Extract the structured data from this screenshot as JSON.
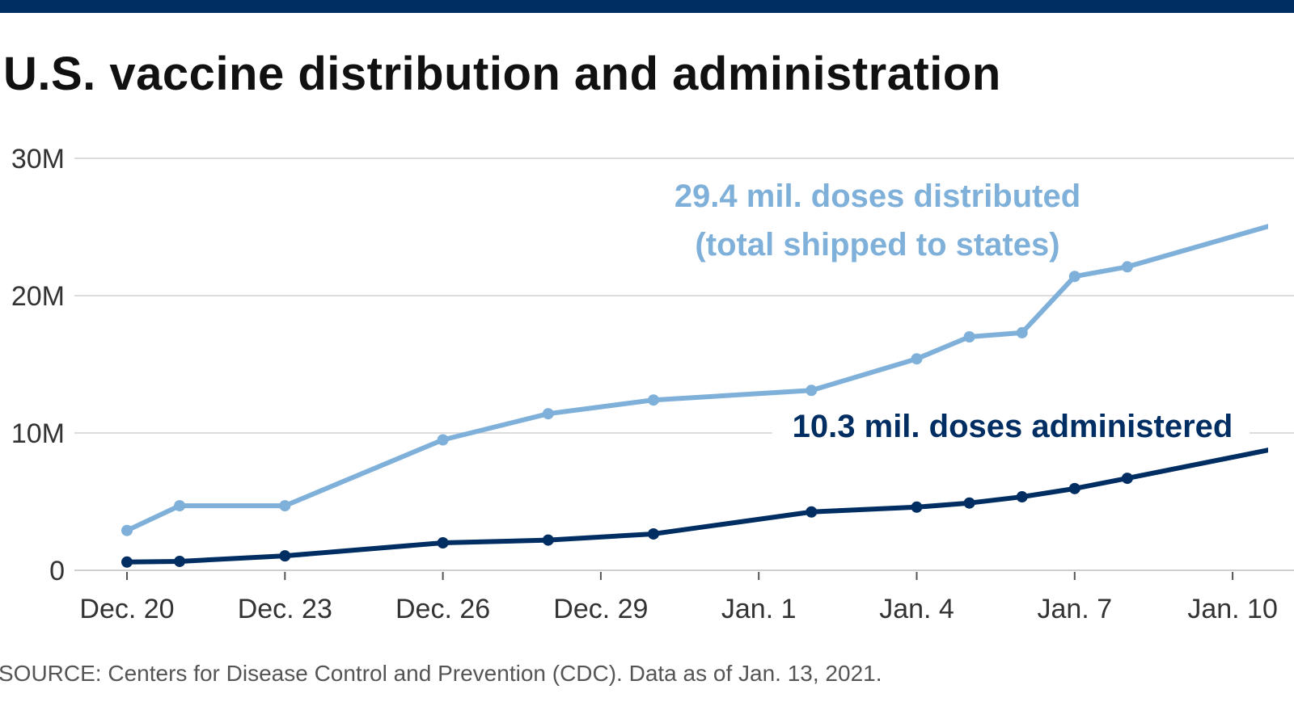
{
  "title": "U.S. vaccine distribution and administration",
  "source": "SOURCE: Centers for Disease Control and Prevention (CDC). Data as of Jan. 13, 2021.",
  "colors": {
    "top_bar": "#002d62",
    "distributed": "#7fb0d9",
    "administered": "#002d62",
    "grid": "#dcdcdc"
  },
  "chart_data": {
    "type": "line",
    "title": "U.S. vaccine distribution and administration",
    "xlabel": "",
    "ylabel": "",
    "ylim": [
      0,
      30
    ],
    "y_unit": "million doses",
    "y_ticks": [
      {
        "value": 0,
        "label": "0"
      },
      {
        "value": 10,
        "label": "10M"
      },
      {
        "value": 20,
        "label": "20M"
      },
      {
        "value": 30,
        "label": "30M"
      }
    ],
    "x_ticks": [
      "Dec. 20",
      "Dec. 23",
      "Dec. 26",
      "Dec. 29",
      "Jan. 1",
      "Jan. 4",
      "Jan. 7",
      "Jan. 10"
    ],
    "grid": true,
    "x": [
      "Dec. 20",
      "Dec. 21",
      "Dec. 23",
      "Dec. 26",
      "Dec. 28",
      "Dec. 30",
      "Jan. 2",
      "Jan. 4",
      "Jan. 5",
      "Jan. 6",
      "Jan. 7",
      "Jan. 8",
      "Jan. 11"
    ],
    "series": [
      {
        "key": "distributed",
        "values": [
          2.9,
          4.7,
          4.7,
          9.5,
          11.4,
          12.4,
          13.1,
          15.4,
          17.0,
          17.3,
          21.4,
          22.1,
          25.4
        ]
      },
      {
        "key": "administered",
        "values": [
          0.6,
          0.65,
          1.05,
          2.0,
          2.2,
          2.65,
          4.25,
          4.6,
          4.9,
          5.35,
          5.95,
          6.7,
          9.0
        ]
      }
    ],
    "annotations": {
      "distributed_line1": "29.4 mil. doses distributed",
      "distributed_line2": "(total shipped to states)",
      "administered": "10.3 mil. doses administered"
    }
  }
}
